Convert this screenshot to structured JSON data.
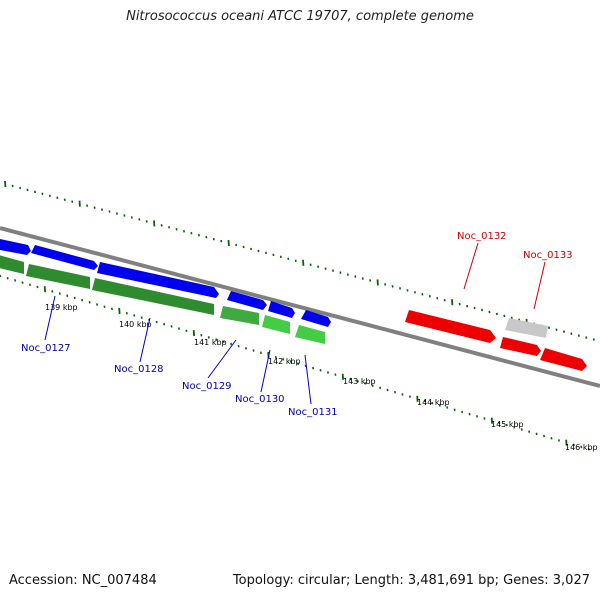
{
  "title": "Nitrosococcus oceani ATCC 19707, complete genome",
  "footer": {
    "accession": "Accession: NC_007484",
    "summary": "Topology: circular; Length: 3,481,691 bp; Genes: 3,027"
  },
  "colors": {
    "forward_gene": "#0000ee",
    "reverse_gene": "#33bb33",
    "reverse_gene_dark": "#1a8a1a",
    "highlight_gene": "#ee0000",
    "other_gene": "#c0c0c0",
    "backbone": "#7a7a7a",
    "ticks": "#006600",
    "label_blue": "#0000aa",
    "label_red": "#cc0000"
  },
  "scale_labels": [
    "139 kbp",
    "140 kbp",
    "141 kbp",
    "142 kbp",
    "143 kbp",
    "144 kbp",
    "145 kbp",
    "146 kbp"
  ],
  "gene_labels": [
    "Noc_0127",
    "Noc_0128",
    "Noc_0129",
    "Noc_0130",
    "Noc_0131",
    "Noc_0132",
    "Noc_0133"
  ]
}
